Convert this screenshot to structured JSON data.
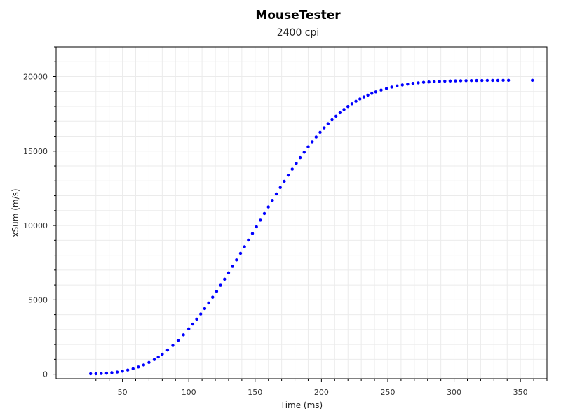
{
  "chart_data": {
    "type": "scatter",
    "title": "MouseTester",
    "subtitle": "2400 cpi",
    "xlabel": "Time (ms)",
    "ylabel": "xSum (m/s)",
    "xlim": [
      0,
      370
    ],
    "ylim": [
      -300,
      22000
    ],
    "x_ticks": [
      50,
      100,
      150,
      200,
      250,
      300,
      350
    ],
    "y_ticks": [
      0,
      5000,
      10000,
      15000,
      20000
    ],
    "x_tick_labels": [
      "50",
      "100",
      "150",
      "200",
      "250",
      "300",
      "350"
    ],
    "y_tick_labels": [
      "0",
      "5000",
      "10000",
      "15000",
      "20000"
    ],
    "grid": true,
    "marker_color": "#0000ff",
    "series": [
      {
        "x": [
          26,
          30,
          34,
          38,
          42,
          46,
          50,
          54,
          58,
          62,
          66,
          70,
          74,
          77,
          80,
          84,
          88,
          92,
          96,
          100,
          103,
          106,
          109,
          112,
          115,
          118,
          121,
          124,
          127,
          130,
          133,
          136,
          139,
          142,
          145,
          148,
          151,
          154,
          157,
          160,
          163,
          166,
          169,
          172,
          175,
          178,
          181,
          184,
          187,
          190,
          193,
          196,
          199,
          202,
          205,
          208,
          211,
          214,
          217,
          220,
          223,
          226,
          229,
          232,
          235,
          238,
          241,
          245,
          249,
          253,
          257,
          261,
          265,
          269,
          273,
          277,
          281,
          285,
          289,
          293,
          297,
          301,
          305,
          309,
          313,
          317,
          321,
          325,
          329,
          333,
          337,
          341,
          359
        ],
        "y": [
          30,
          34,
          48,
          70,
          102,
          146,
          203,
          277,
          370,
          484,
          622,
          788,
          983,
          1154,
          1343,
          1623,
          1933,
          2274,
          2646,
          3047,
          3366,
          3700,
          4048,
          4410,
          4785,
          5171,
          5568,
          5975,
          6391,
          6815,
          7246,
          7682,
          8123,
          8568,
          9015,
          9463,
          9912,
          10359,
          10806,
          11249,
          11688,
          12123,
          12551,
          12972,
          13384,
          13787,
          14180,
          14561,
          14929,
          15285,
          15627,
          15954,
          16266,
          16562,
          16842,
          17105,
          17352,
          17582,
          17796,
          17994,
          18176,
          18342,
          18495,
          18633,
          18759,
          18872,
          18975,
          19098,
          19205,
          19297,
          19374,
          19441,
          19496,
          19543,
          19582,
          19614,
          19640,
          19662,
          19680,
          19694,
          19706,
          19715,
          19723,
          19729,
          19734,
          19738,
          19741,
          19743,
          19745,
          19747,
          19748,
          19749,
          19751
        ]
      }
    ]
  }
}
